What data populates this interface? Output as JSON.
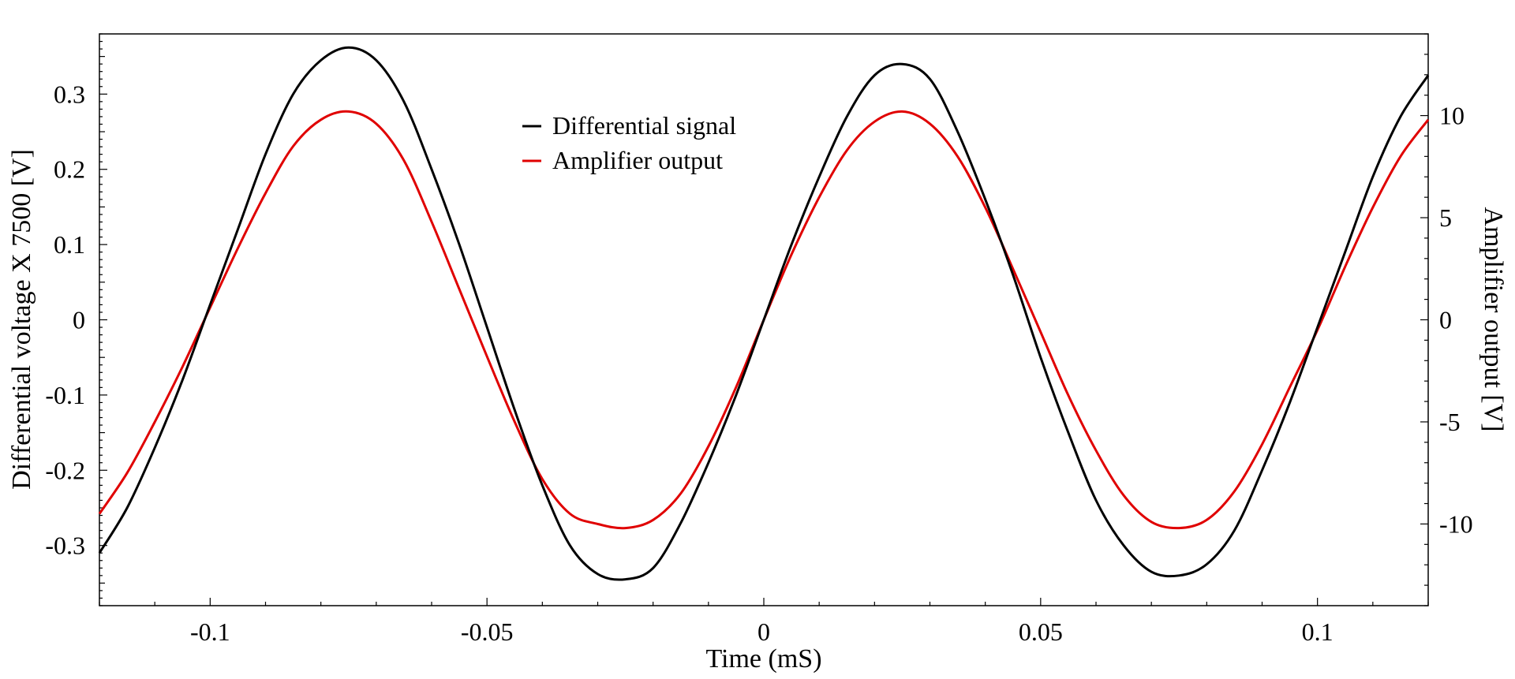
{
  "chart_data": {
    "type": "line",
    "xlabel": "Time (mS)",
    "ylabel": "Differential voltage X 7500 [V]",
    "y2label": "Amplifier output [V]",
    "xlim": [
      -0.12,
      0.12
    ],
    "ylim": [
      -0.38,
      0.38
    ],
    "y2lim": [
      -14,
      14
    ],
    "xticks": [
      -0.1,
      -0.05,
      0,
      0.05,
      0.1
    ],
    "xtick_labels": [
      "-0.1",
      "-0.05",
      "0",
      "0.05",
      "0.1"
    ],
    "yticks": [
      -0.3,
      -0.2,
      -0.1,
      0,
      0.1,
      0.2,
      0.3
    ],
    "ytick_labels": [
      "-0.3",
      "-0.2",
      "-0.1",
      "0",
      "0.1",
      "0.2",
      "0.3"
    ],
    "y2ticks": [
      -10,
      -5,
      0,
      5,
      10
    ],
    "y2tick_labels": [
      "-10",
      "-5",
      "0",
      "5",
      "10"
    ],
    "grid": false,
    "legend_position": "top-center",
    "series": [
      {
        "name": "Differential signal",
        "axis": "left",
        "color": "#000000",
        "x": [
          -0.12,
          -0.115,
          -0.11,
          -0.105,
          -0.1,
          -0.095,
          -0.09,
          -0.085,
          -0.08,
          -0.075,
          -0.07,
          -0.065,
          -0.06,
          -0.055,
          -0.05,
          -0.045,
          -0.04,
          -0.035,
          -0.03,
          -0.025,
          -0.02,
          -0.015,
          -0.01,
          -0.005,
          0,
          0.005,
          0.01,
          0.015,
          0.02,
          0.025,
          0.03,
          0.035,
          0.04,
          0.045,
          0.05,
          0.055,
          0.06,
          0.065,
          0.07,
          0.075,
          0.08,
          0.085,
          0.09,
          0.095,
          0.1,
          0.105,
          0.11,
          0.115,
          0.12
        ],
        "y": [
          -0.31,
          -0.25,
          -0.17,
          -0.08,
          0.02,
          0.12,
          0.22,
          0.3,
          0.345,
          0.362,
          0.345,
          0.29,
          0.2,
          0.1,
          -0.01,
          -0.12,
          -0.22,
          -0.3,
          -0.338,
          -0.345,
          -0.33,
          -0.27,
          -0.19,
          -0.1,
          0.0,
          0.1,
          0.19,
          0.27,
          0.325,
          0.34,
          0.32,
          0.25,
          0.16,
          0.06,
          -0.05,
          -0.15,
          -0.24,
          -0.3,
          -0.335,
          -0.34,
          -0.325,
          -0.28,
          -0.2,
          -0.11,
          -0.01,
          0.09,
          0.19,
          0.27,
          0.325
        ]
      },
      {
        "name": "Amplifier output",
        "axis": "right",
        "color": "#e00000",
        "x": [
          -0.12,
          -0.115,
          -0.11,
          -0.105,
          -0.1,
          -0.095,
          -0.09,
          -0.085,
          -0.08,
          -0.075,
          -0.07,
          -0.065,
          -0.06,
          -0.055,
          -0.05,
          -0.045,
          -0.04,
          -0.035,
          -0.03,
          -0.025,
          -0.02,
          -0.015,
          -0.01,
          -0.005,
          0,
          0.005,
          0.01,
          0.015,
          0.02,
          0.025,
          0.03,
          0.035,
          0.04,
          0.045,
          0.05,
          0.055,
          0.06,
          0.065,
          0.07,
          0.075,
          0.08,
          0.085,
          0.09,
          0.095,
          0.1,
          0.105,
          0.11,
          0.115,
          0.12
        ],
        "y": [
          -9.5,
          -7.5,
          -5.0,
          -2.3,
          0.6,
          3.5,
          6.2,
          8.5,
          9.8,
          10.2,
          9.6,
          7.8,
          4.8,
          1.5,
          -1.8,
          -5.0,
          -7.8,
          -9.5,
          -10.0,
          -10.2,
          -9.8,
          -8.5,
          -6.2,
          -3.3,
          0.0,
          3.2,
          6.0,
          8.3,
          9.7,
          10.2,
          9.6,
          8.0,
          5.5,
          2.5,
          -0.6,
          -3.7,
          -6.4,
          -8.6,
          -9.9,
          -10.2,
          -9.8,
          -8.4,
          -6.1,
          -3.3,
          -0.5,
          2.6,
          5.5,
          8.0,
          9.8
        ]
      }
    ]
  }
}
